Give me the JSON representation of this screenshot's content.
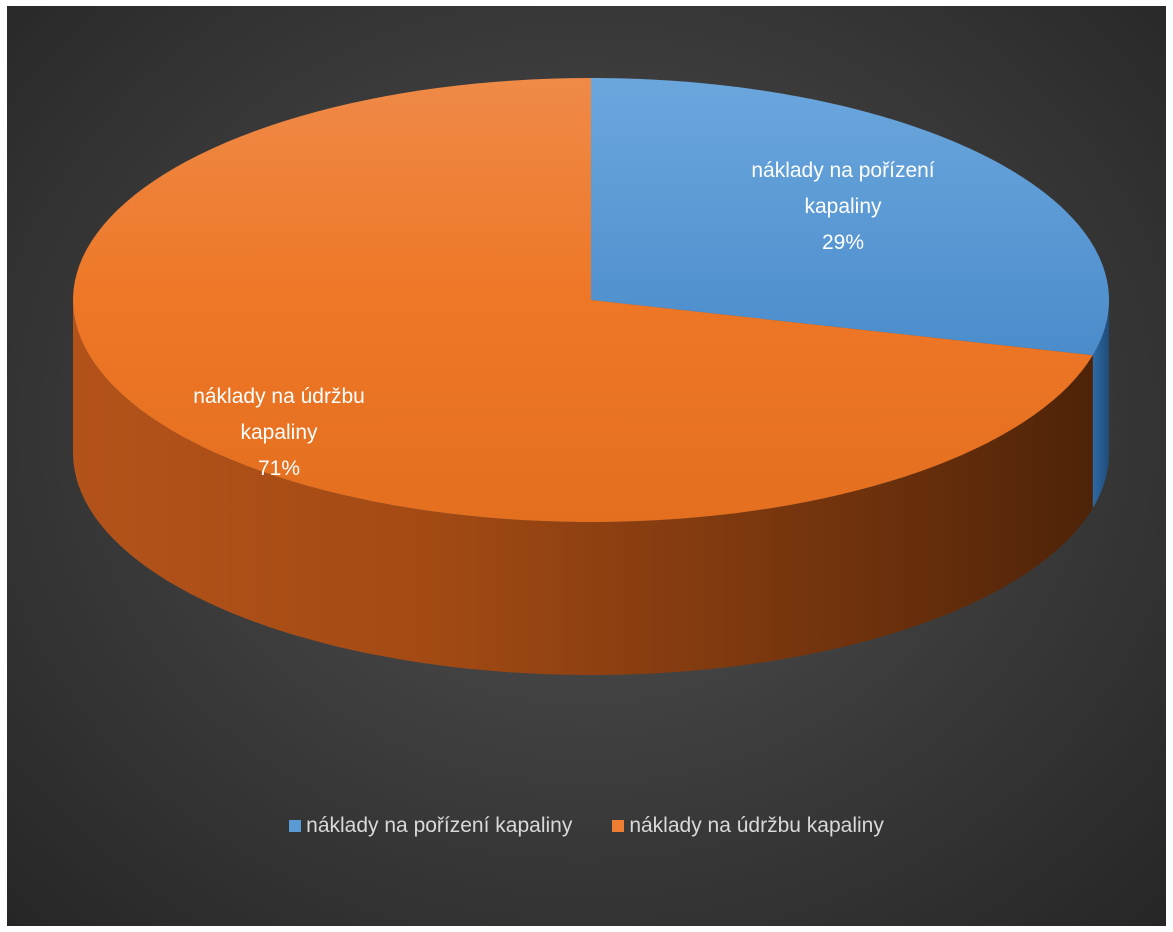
{
  "chart_data": {
    "type": "pie",
    "style": "3d",
    "slices": [
      {
        "name": "náklady na pořízení kapaliny",
        "label_lines": [
          "náklady na pořízení",
          "kapaliny"
        ],
        "percent_label": "29%",
        "value": 29,
        "color": "#5b9bd5"
      },
      {
        "name": "náklady na údržbu kapaliny",
        "label_lines": [
          "náklady na údržbu",
          "kapaliny"
        ],
        "percent_label": "71%",
        "value": 71,
        "color": "#ed7d31"
      }
    ],
    "legend": {
      "position": "bottom",
      "items": [
        "náklady na pořízení kapaliny",
        "náklady na údržbu kapaliny"
      ]
    },
    "background": "#3a3a3a",
    "label_color": "#ffffff"
  }
}
